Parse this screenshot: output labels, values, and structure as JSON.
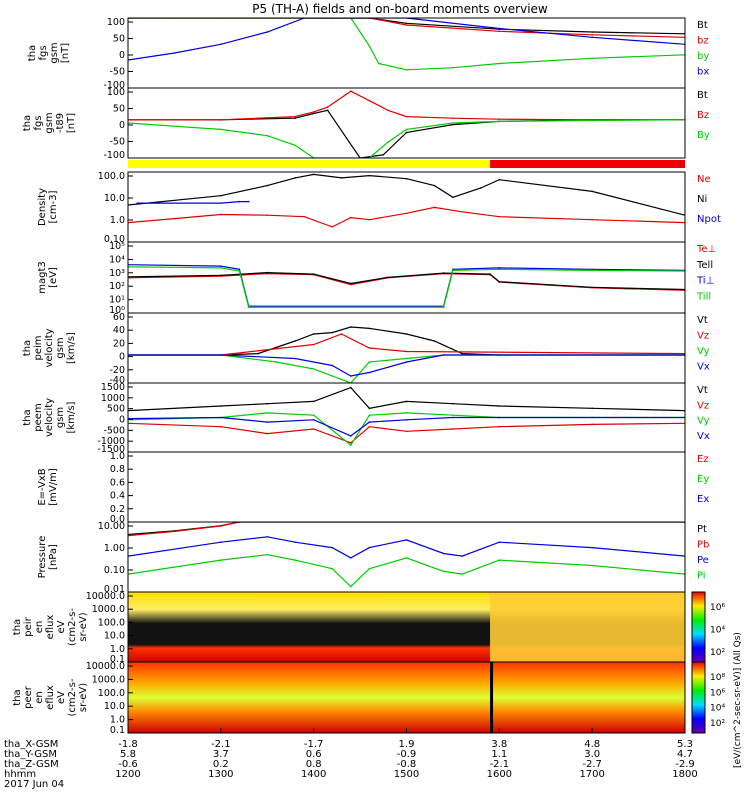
{
  "title": "P5 (TH-A) fields and on-board moments overview",
  "colors": {
    "black": "#000000",
    "red": "#e00000",
    "green": "#00cc00",
    "blue": "#0000e0",
    "yellow": "#ffff00",
    "bar_red": "#ee0000"
  },
  "chart_data": [
    {
      "type": "line",
      "ylabel_lines": [
        "tha",
        "fgs",
        "gsm",
        "[nT]"
      ],
      "yticks": [
        "100",
        "50",
        "0",
        "-50",
        "-100"
      ],
      "ylim": [
        -100,
        100
      ],
      "series": [
        {
          "name": "Bt",
          "color": "#000000",
          "x": [
            1200,
            1420,
            1430,
            1440,
            1460,
            1500,
            1600,
            1700,
            1800
          ],
          "y": [
            100,
            100,
            100,
            100,
            100,
            85,
            68,
            60,
            55
          ]
        },
        {
          "name": "bz",
          "color": "#e00000",
          "x": [
            1200,
            1420,
            1430,
            1440,
            1460,
            1500,
            1600,
            1700,
            1800
          ],
          "y": [
            100,
            100,
            100,
            100,
            100,
            80,
            62,
            52,
            45
          ]
        },
        {
          "name": "by",
          "color": "#00cc00",
          "x": [
            1200,
            1250,
            1300,
            1420,
            1440,
            1460,
            1470,
            1500,
            1550,
            1600,
            1700,
            1800
          ],
          "y": [
            100,
            100,
            100,
            100,
            100,
            20,
            -30,
            -48,
            -42,
            -30,
            -15,
            -5
          ]
        },
        {
          "name": "bx",
          "color": "#0000e0",
          "x": [
            1200,
            1250,
            1300,
            1350,
            1390,
            1420,
            1450,
            1500,
            1600,
            1700,
            1800
          ],
          "y": [
            -20,
            0,
            25,
            60,
            100,
            100,
            100,
            100,
            70,
            45,
            25
          ]
        }
      ]
    },
    {
      "type": "line",
      "ylabel_lines": [
        "tha",
        "fgs",
        "gsm",
        "-t89",
        "[nT]"
      ],
      "yticks": [
        "100",
        "50",
        "0",
        "-50",
        "-100"
      ],
      "ylim": [
        -120,
        100
      ],
      "series": [
        {
          "name": "Bt",
          "color": "#000000",
          "x": [
            1200,
            1300,
            1380,
            1400,
            1415,
            1450,
            1475,
            1500,
            1550,
            1600,
            1700,
            1800
          ],
          "y": [
            0,
            0,
            5,
            20,
            30,
            -120,
            -110,
            -40,
            -15,
            -5,
            0,
            0
          ]
        },
        {
          "name": "Bz",
          "color": "#e00000",
          "x": [
            1200,
            1300,
            1380,
            1400,
            1415,
            1440,
            1460,
            1480,
            1500,
            1550,
            1600,
            1700,
            1800
          ],
          "y": [
            0,
            0,
            10,
            25,
            40,
            90,
            60,
            30,
            10,
            5,
            2,
            0,
            0
          ]
        },
        {
          "name": "By",
          "color": "#00cc00",
          "x": [
            1200,
            1300,
            1350,
            1380,
            1400,
            1460,
            1480,
            1500,
            1550,
            1600,
            1700,
            1800
          ],
          "y": [
            -10,
            -30,
            -50,
            -80,
            -120,
            -120,
            -70,
            -30,
            -10,
            -5,
            -2,
            0
          ]
        }
      ],
      "status_bar": [
        {
          "from": 1200,
          "to": 1590,
          "color": "#ffff00"
        },
        {
          "from": 1590,
          "to": 1800,
          "color": "#ee0000"
        }
      ]
    },
    {
      "type": "line",
      "log": true,
      "ylabel_lines": [
        "Density",
        "[cm-3]"
      ],
      "yticks": [
        "100.0",
        "10.0",
        "1.0",
        "0.10"
      ],
      "ylim": [
        0.05,
        200
      ],
      "series": [
        {
          "name": "Ne",
          "color": "#e00000",
          "x": [
            1200,
            1250,
            1300,
            1350,
            1390,
            1420,
            1440,
            1460,
            1500,
            1530,
            1560,
            1600,
            1700,
            1800
          ],
          "y": [
            0.5,
            0.8,
            1.3,
            1.2,
            1.0,
            0.3,
            0.9,
            0.7,
            1.5,
            3.0,
            1.8,
            1.0,
            0.7,
            0.5
          ]
        },
        {
          "name": "Ni",
          "color": "#000000",
          "x": [
            1200,
            1300,
            1350,
            1380,
            1400,
            1430,
            1460,
            1500,
            1530,
            1550,
            1580,
            1600,
            1700,
            1800
          ],
          "y": [
            4,
            12,
            40,
            100,
            150,
            100,
            130,
            90,
            40,
            10,
            30,
            80,
            20,
            1.2
          ]
        },
        {
          "name": "Npot",
          "color": "#0000e0",
          "x": [
            1210,
            1300,
            1320,
            1330
          ],
          "y": [
            5,
            5,
            6,
            6
          ]
        }
      ]
    },
    {
      "type": "line",
      "log": true,
      "ylabel_lines": [
        "magt3",
        "[eV]"
      ],
      "yticks": [
        "10⁵",
        "10⁴",
        "10³",
        "10²",
        "10¹",
        "10⁰"
      ],
      "ylim": [
        1,
        100000
      ],
      "series": [
        {
          "name": "Te⊥",
          "color": "#e00000",
          "x": [
            1200,
            1300,
            1350,
            1400,
            1440,
            1480,
            1540,
            1590,
            1600,
            1700,
            1800
          ],
          "y": [
            300,
            400,
            600,
            500,
            100,
            300,
            600,
            500,
            150,
            60,
            40
          ]
        },
        {
          "name": "Tell",
          "color": "#000000",
          "x": [
            1200,
            1300,
            1350,
            1400,
            1440,
            1480,
            1540,
            1590,
            1600,
            1700,
            1800
          ],
          "y": [
            350,
            450,
            700,
            550,
            120,
            320,
            650,
            550,
            160,
            65,
            45
          ]
        },
        {
          "name": "Ti⊥",
          "color": "#0000e0",
          "x": [
            1200,
            1300,
            1320,
            1330,
            1540,
            1550,
            1600,
            1700,
            1800
          ],
          "y": [
            2500,
            2000,
            1200,
            3,
            3,
            1200,
            1500,
            1200,
            1000
          ]
        },
        {
          "name": "Till",
          "color": "#00cc00",
          "x": [
            1200,
            1300,
            1320,
            1330,
            1540,
            1550,
            1600,
            1700,
            1800
          ],
          "y": [
            1800,
            1500,
            900,
            2.5,
            2.5,
            1000,
            1200,
            1000,
            900
          ]
        }
      ]
    },
    {
      "type": "line",
      "ylabel_lines": [
        "tha",
        "peim",
        "velocity",
        "gsm",
        "[km/s]"
      ],
      "yticks": [
        "60",
        "40",
        "20",
        "0",
        "-20",
        "-40"
      ],
      "ylim": [
        -40,
        60
      ],
      "series": [
        {
          "name": "Vt",
          "color": "#000000",
          "x": [
            1200,
            1300,
            1340,
            1380,
            1400,
            1420,
            1440,
            1460,
            1500,
            1530,
            1560,
            1600,
            1800
          ],
          "y": [
            0,
            0,
            2,
            20,
            30,
            32,
            40,
            38,
            30,
            20,
            2,
            0,
            0
          ]
        },
        {
          "name": "Vz",
          "color": "#e00000",
          "x": [
            1200,
            1300,
            1400,
            1430,
            1460,
            1500,
            1800
          ],
          "y": [
            0,
            0,
            15,
            30,
            10,
            5,
            2
          ]
        },
        {
          "name": "Vy",
          "color": "#00cc00",
          "x": [
            1200,
            1300,
            1360,
            1400,
            1440,
            1460,
            1500,
            1540,
            1800
          ],
          "y": [
            0,
            0,
            -10,
            -20,
            -40,
            -10,
            -5,
            0,
            0
          ]
        },
        {
          "name": "Vx",
          "color": "#0000e0",
          "x": [
            1200,
            1300,
            1380,
            1420,
            1440,
            1460,
            1500,
            1540,
            1800
          ],
          "y": [
            0,
            0,
            -5,
            -15,
            -30,
            -25,
            -10,
            0,
            0
          ]
        }
      ]
    },
    {
      "type": "line",
      "ylabel_lines": [
        "tha",
        "peem",
        "velocity",
        "gsm",
        "[km/s]"
      ],
      "yticks": [
        "1500",
        "1000",
        "500",
        "0",
        "-500",
        "-1000",
        "-1500"
      ],
      "ylim": [
        -1500,
        1500
      ],
      "series": [
        {
          "name": "Vt",
          "color": "#000000",
          "x": [
            1200,
            1300,
            1350,
            1400,
            1440,
            1460,
            1500,
            1550,
            1600,
            1700,
            1800
          ],
          "y": [
            300,
            500,
            600,
            700,
            1300,
            400,
            700,
            600,
            500,
            400,
            300
          ]
        },
        {
          "name": "Vz",
          "color": "#e00000",
          "x": [
            1200,
            1300,
            1350,
            1400,
            1440,
            1460,
            1500,
            1550,
            1600,
            1700,
            1800
          ],
          "y": [
            -250,
            -400,
            -700,
            -500,
            -1100,
            -400,
            -600,
            -500,
            -400,
            -300,
            -250
          ]
        },
        {
          "name": "Vy",
          "color": "#00cc00",
          "x": [
            1200,
            1300,
            1350,
            1400,
            1440,
            1460,
            1500,
            1550,
            1600,
            1700,
            1800
          ],
          "y": [
            -100,
            0,
            200,
            100,
            -1200,
            100,
            200,
            100,
            0,
            0,
            0
          ]
        },
        {
          "name": "Vx",
          "color": "#0000e0",
          "x": [
            1200,
            1300,
            1350,
            1400,
            1440,
            1460,
            1500,
            1550,
            1600,
            1700,
            1800
          ],
          "y": [
            -50,
            0,
            -200,
            -100,
            -800,
            -200,
            -100,
            0,
            0,
            0,
            0
          ]
        }
      ]
    },
    {
      "type": "line",
      "ylabel_lines": [
        "E=-VxB",
        "[mV/m]"
      ],
      "yticks": [
        "1.0",
        "0.8",
        "0.6",
        "0.4",
        "0.2",
        "0.0"
      ],
      "ylim": [
        0,
        1
      ],
      "series": [
        {
          "name": "Ez",
          "color": "#e00000",
          "x": [],
          "y": []
        },
        {
          "name": "Ey",
          "color": "#00cc00",
          "x": [],
          "y": []
        },
        {
          "name": "Ex",
          "color": "#0000e0",
          "x": [],
          "y": []
        }
      ]
    },
    {
      "type": "line",
      "log": true,
      "ylabel_lines": [
        "Pressure",
        "[nPa]"
      ],
      "yticks": [
        "10.00",
        "1.00",
        "0.10",
        "0.01"
      ],
      "ylim": [
        0.005,
        40
      ],
      "series": [
        {
          "name": "Pt",
          "color": "#000000",
          "x": [
            1200,
            1250,
            1300,
            1320,
            1800
          ],
          "y": [
            8,
            13,
            25,
            40,
            40
          ]
        },
        {
          "name": "Pb",
          "color": "#e00000",
          "x": [
            1200,
            1250,
            1300,
            1320,
            1800
          ],
          "y": [
            7,
            12,
            24,
            40,
            40
          ]
        },
        {
          "name": "Pe",
          "color": "#0000e0",
          "x": [
            1200,
            1300,
            1350,
            1380,
            1420,
            1440,
            1460,
            1500,
            1540,
            1560,
            1600,
            1700,
            1800
          ],
          "y": [
            0.5,
            3,
            6,
            3,
            1.5,
            0.4,
            1.5,
            4,
            0.7,
            0.5,
            3,
            1.5,
            0.5
          ]
        },
        {
          "name": "Pi",
          "color": "#00cc00",
          "x": [
            1200,
            1300,
            1350,
            1380,
            1420,
            1440,
            1460,
            1500,
            1540,
            1560,
            1600,
            1700,
            1800
          ],
          "y": [
            0.05,
            0.3,
            0.6,
            0.3,
            0.1,
            0.01,
            0.1,
            0.4,
            0.07,
            0.05,
            0.3,
            0.15,
            0.05
          ]
        }
      ]
    },
    {
      "type": "heatmap",
      "log": true,
      "ylabel_lines": [
        "tha",
        "peir",
        "en",
        "eflux",
        "eV",
        "(cm2-s-",
        "sr-eV)"
      ],
      "yticks": [
        "10000.0",
        "1000.0",
        "100.0",
        "10.0",
        "1.0",
        "0.1"
      ],
      "colorbar_ticks": [
        "10⁶",
        "10⁴",
        "10²"
      ]
    },
    {
      "type": "heatmap",
      "log": true,
      "ylabel_lines": [
        "tha",
        "peer",
        "en",
        "eflux",
        "eV",
        "(cm2-s-",
        "sr-eV)"
      ],
      "yticks": [
        "10000.0",
        "1000.0",
        "100.0",
        "10.0",
        "1.0",
        "0.1"
      ],
      "colorbar_ticks": [
        "10⁸",
        "10⁶",
        "10⁴",
        "10²"
      ]
    }
  ],
  "colorbar_label": "[eV/(cm^2-sec-sr-eV)] (All Qs)",
  "time_axis": {
    "xlim": [
      1200,
      1800
    ],
    "rows": [
      {
        "label": "tha_X-GSM",
        "values": [
          "-1.8",
          "-2.1",
          "-1.7",
          "1.9",
          "3.8",
          "4.8",
          "5.3"
        ]
      },
      {
        "label": "tha_Y-GSM",
        "values": [
          "5.8",
          "3.7",
          "0.6",
          "-0.9",
          "1.1",
          "3.0",
          "4.7"
        ]
      },
      {
        "label": "tha_Z-GSM",
        "values": [
          "-0.6",
          "0.2",
          "0.8",
          "-0.8",
          "-2.1",
          "-2.7",
          "-2.9"
        ]
      },
      {
        "label": "hhmm",
        "values": [
          "1200",
          "1300",
          "1400",
          "1500",
          "1600",
          "1700",
          "1800"
        ]
      }
    ],
    "date": "2017 Jun 04"
  }
}
